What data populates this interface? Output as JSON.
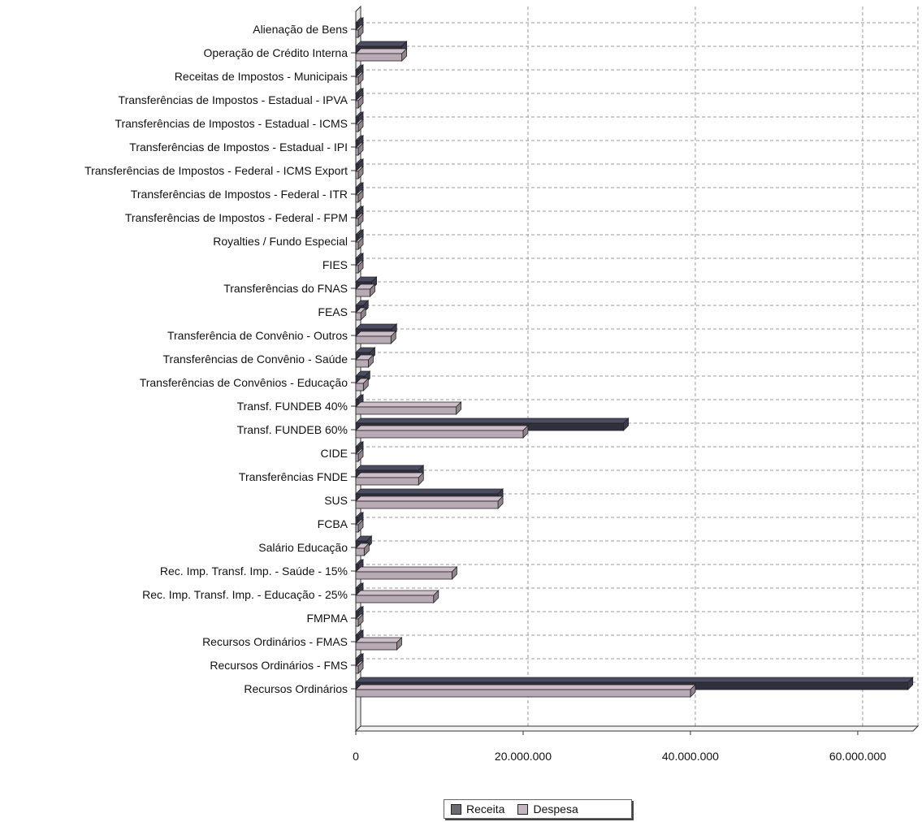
{
  "chart_data": {
    "type": "bar",
    "orientation": "horizontal",
    "title": "",
    "xlabel": "",
    "ylabel": "",
    "xlim": [
      0,
      67000000
    ],
    "grid": true,
    "legend_placement": "bottom-center",
    "x_ticks": [
      {
        "value": 0,
        "label": "0"
      },
      {
        "value": 20000000,
        "label": "20.000.000"
      },
      {
        "value": 40000000,
        "label": "40.000.000"
      },
      {
        "value": 60000000,
        "label": "60.000.000"
      }
    ],
    "categories": [
      "Alienação de Bens",
      "Operação de Crédito Interna",
      "Receitas de Impostos - Municipais",
      "Transferências de Impostos - Estadual - IPVA",
      "Transferências de Impostos - Estadual - ICMS",
      "Transferências de Impostos - Estadual - IPI",
      "Transferências de Impostos - Federal - ICMS Export",
      "Transferências de Impostos - Federal - ITR",
      "Transferências de Impostos - Federal - FPM",
      "Royalties / Fundo Especial",
      "FIES",
      "Transferências do FNAS",
      "FEAS",
      "Transferência de Convênio - Outros",
      "Transferências de Convênio - Saúde",
      "Transferências de Convênios - Educação",
      "Transf. FUNDEB 40%",
      "Transf. FUNDEB 60%",
      "CIDE",
      "Transferências FNDE",
      "SUS",
      "FCBA",
      "Salário Educação",
      "Rec. Imp. Transf. Imp. - Saúde - 15%",
      "Rec. Imp. Transf. Imp. - Educação - 25%",
      "FMPMA",
      "Recursos Ordinários - FMAS",
      "Recursos Ordinários - FMS",
      "Recursos Ordinários"
    ],
    "series": [
      {
        "name": "Receita",
        "color": "#2f2f3d",
        "values": [
          0,
          5500000,
          0,
          0,
          0,
          0,
          0,
          0,
          0,
          300000,
          0,
          1900000,
          900000,
          4300000,
          1700000,
          1100000,
          0,
          32000000,
          0,
          7500000,
          17000000,
          0,
          1300000,
          0,
          0,
          0,
          0,
          100000,
          66000000
        ]
      },
      {
        "name": "Despesa",
        "color": "#b8aab4",
        "values": [
          0,
          5500000,
          0,
          0,
          0,
          0,
          0,
          0,
          0,
          200000,
          0,
          1700000,
          600000,
          4200000,
          1500000,
          900000,
          12000000,
          20000000,
          0,
          7500000,
          17000000,
          0,
          1000000,
          11500000,
          9300000,
          0,
          4900000,
          0,
          40000000
        ]
      }
    ]
  },
  "legend": {
    "items": [
      {
        "label": "Receita",
        "color": "#6a6a72"
      },
      {
        "label": "Despesa",
        "color": "#c2b6bf"
      }
    ]
  }
}
